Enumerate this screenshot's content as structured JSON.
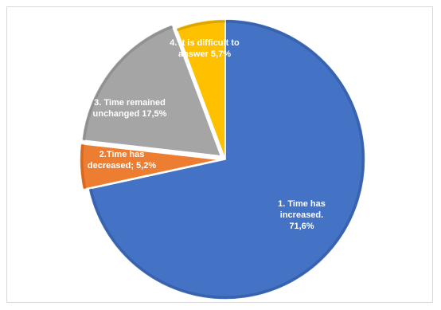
{
  "chart_data": {
    "type": "pie",
    "title": "",
    "start_angle_deg": 0,
    "direction": "clockwise",
    "series": [
      {
        "values": [
          71.6,
          5.2,
          17.5,
          5.7
        ],
        "labels": [
          [
            "1. Time has",
            "increased.",
            "71,6%"
          ],
          [
            "2.Time has",
            "decreased; 5,2%"
          ],
          [
            "3. Time remained",
            "unchanged 17,5%"
          ],
          [
            "4. It is difficult to",
            "answer 5,7%"
          ]
        ],
        "colors": [
          "#4472c4",
          "#ed7d31",
          "#a5a5a5",
          "#ffc000"
        ],
        "edge_colors": [
          "#2f5597",
          "#c55a11",
          "#7f7f7f",
          "#bf9000"
        ]
      }
    ],
    "legend": "none",
    "data_labels": "inside"
  }
}
